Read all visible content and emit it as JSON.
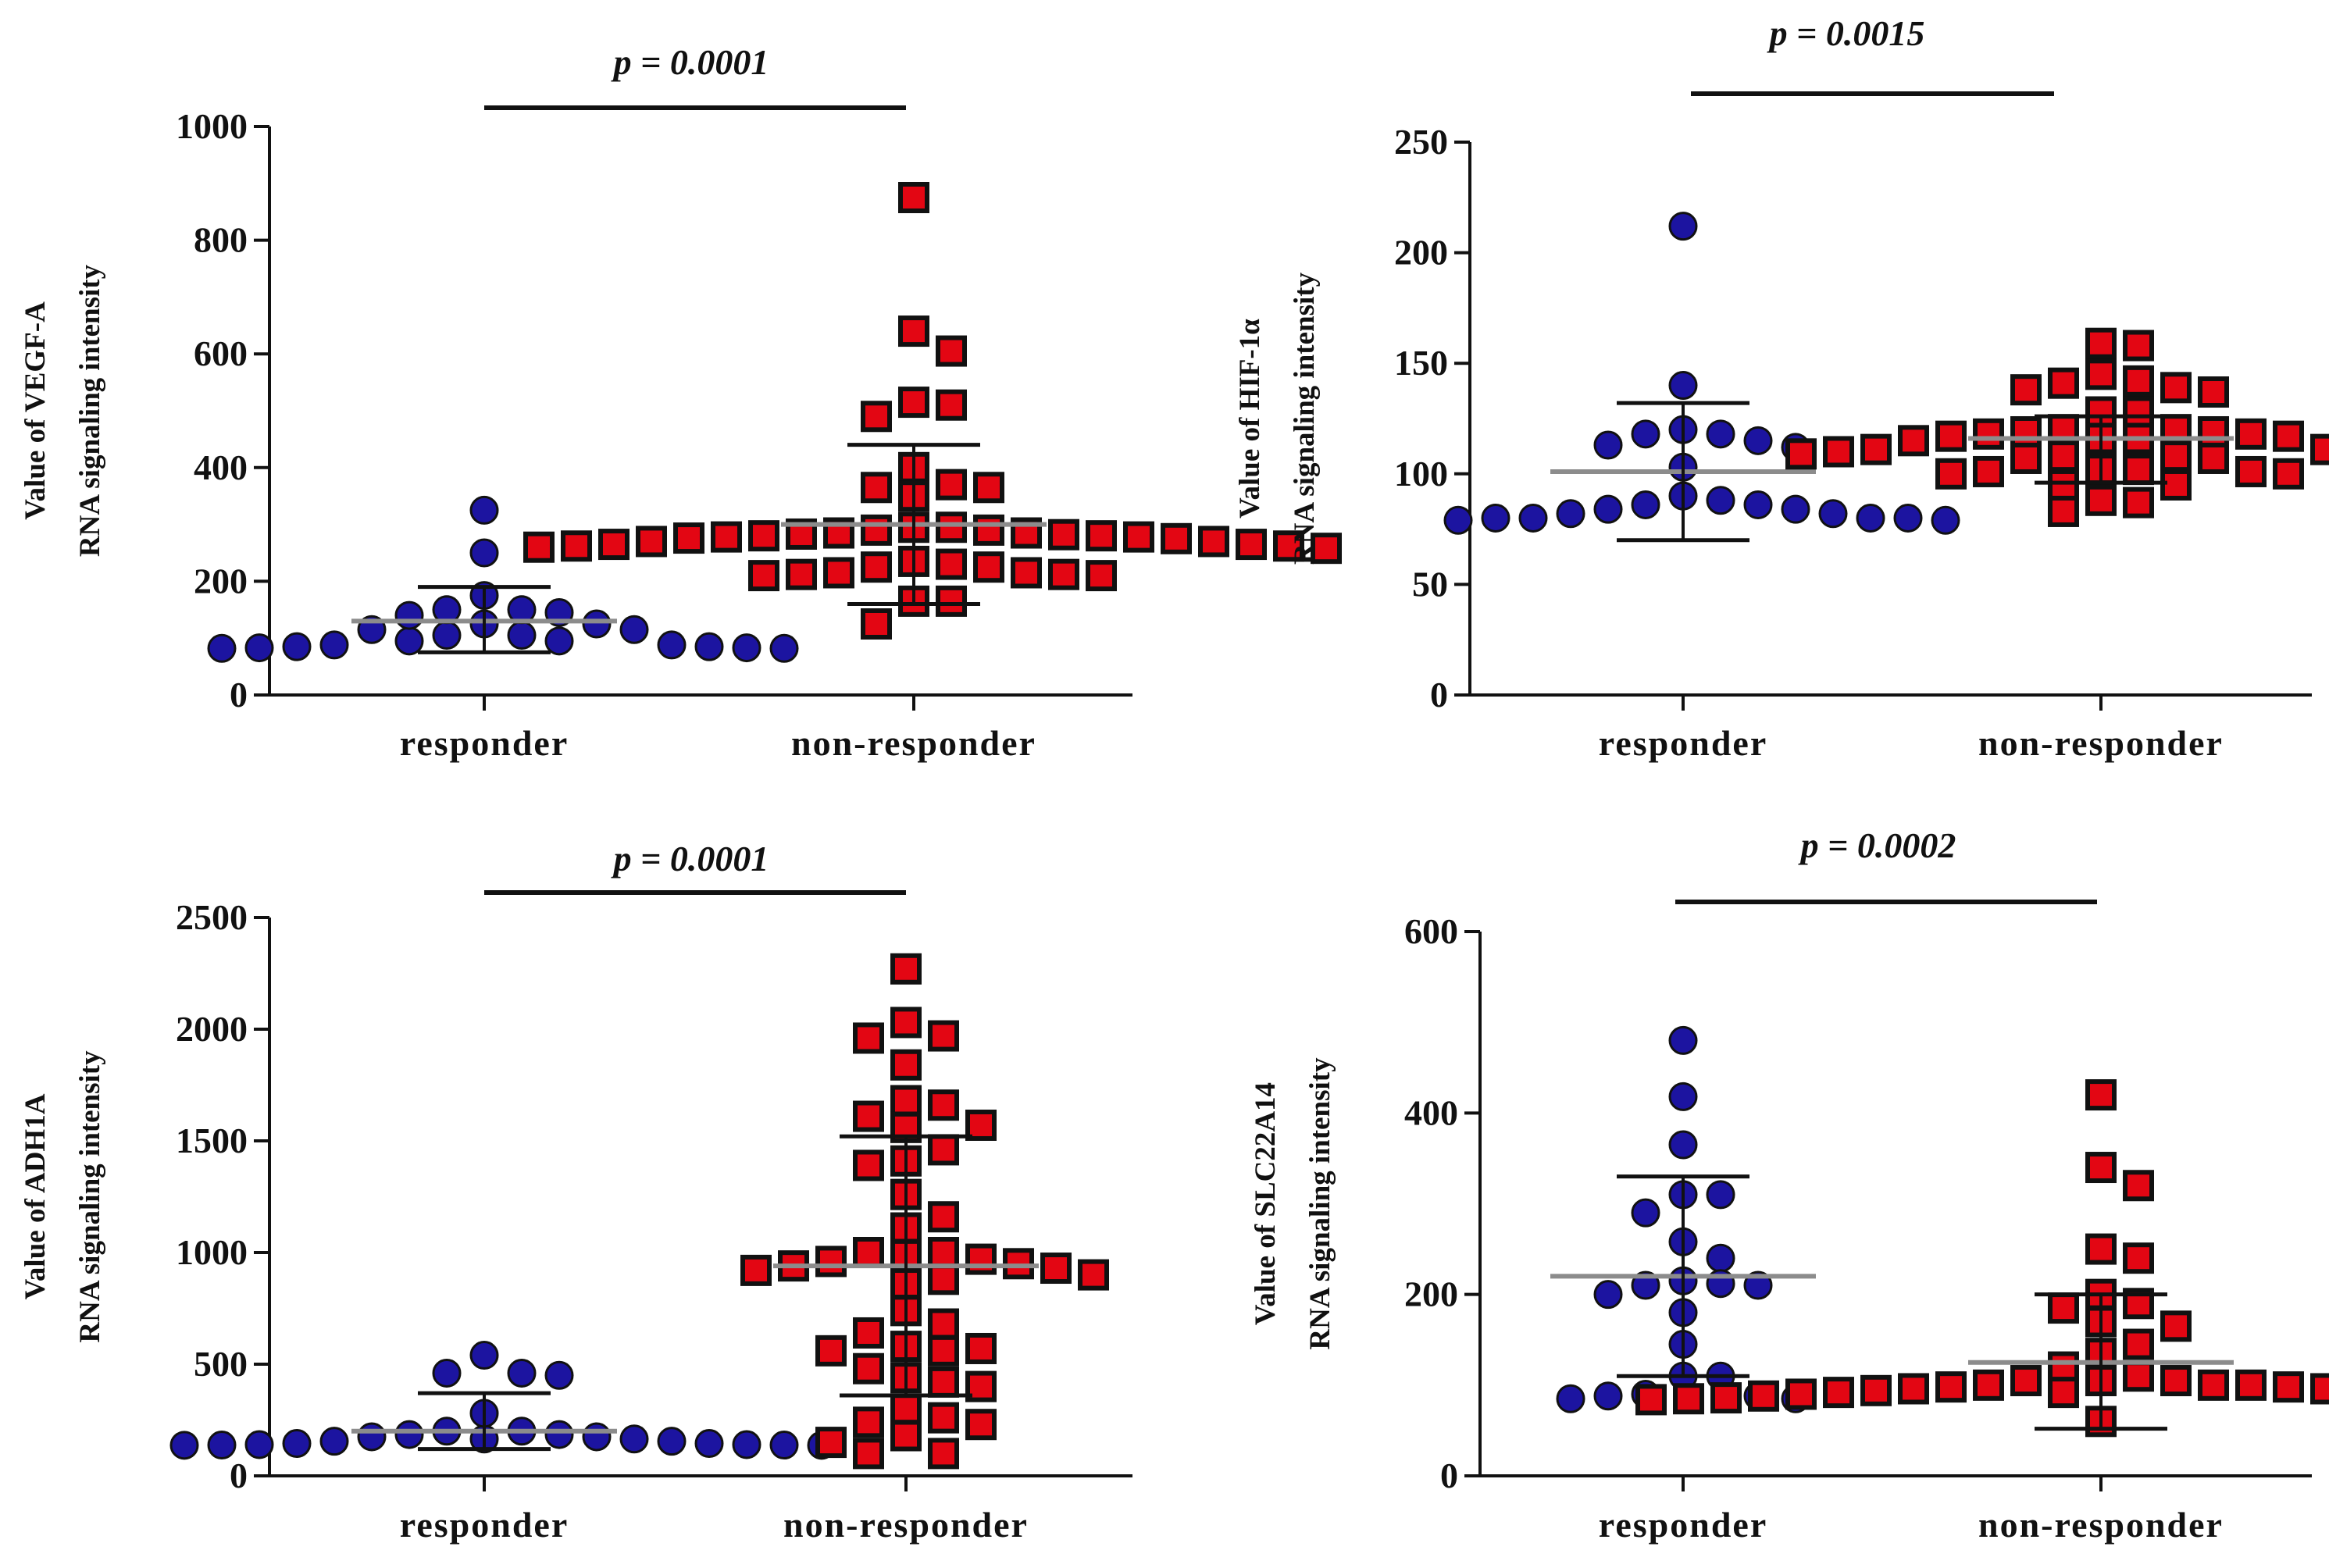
{
  "colors": {
    "responder_fill": "#1c14a0",
    "non_responder_fill": "#e30613",
    "marker_edge": "#111111",
    "mean_line": "#8c8c8c",
    "axis": "#111111"
  },
  "chart_data": [
    {
      "type": "scatter",
      "id": "vegfa",
      "ylabel_line1": "Value of VEGF-A",
      "ylabel_line2": "RNA signaling intensity",
      "ylim": [
        0,
        1000
      ],
      "yticks": [
        0,
        200,
        400,
        600,
        800,
        1000
      ],
      "categories": [
        "responder",
        "non-responder"
      ],
      "pvalue": "p = 0.0001",
      "series": [
        {
          "name": "responder",
          "marker": "circle",
          "mean": 130,
          "sd_low": 75,
          "sd_high": 190,
          "values": [
            125,
            115,
            105,
            95,
            88,
            85,
            83,
            82,
            82,
            83,
            85,
            88,
            95,
            105,
            115,
            125,
            175,
            145,
            150,
            140,
            150,
            250,
            325
          ]
        },
        {
          "name": "non-responder",
          "marker": "square",
          "mean": 300,
          "sd_low": 160,
          "sd_high": 440,
          "values": [
            875,
            605,
            640,
            510,
            490,
            515,
            370,
            365,
            400,
            350,
            365,
            295,
            290,
            285,
            282,
            280,
            278,
            276,
            275,
            278,
            280,
            283,
            285,
            290,
            295,
            270,
            265,
            262,
            260,
            258,
            262,
            265,
            270,
            235,
            225,
            215,
            212,
            210,
            210,
            212,
            215,
            225,
            230,
            165,
            165,
            125
          ]
        }
      ]
    },
    {
      "type": "scatter",
      "id": "hif1a",
      "ylabel_line1": "Value of HIF-1α",
      "ylabel_line2": "RNA signaling intensity",
      "ylim": [
        0,
        250
      ],
      "yticks": [
        0,
        50,
        100,
        150,
        200,
        250
      ],
      "categories": [
        "responder",
        "non-responder"
      ],
      "pvalue": "p = 0.0015",
      "series": [
        {
          "name": "responder",
          "marker": "circle",
          "mean": 101,
          "sd_low": 70,
          "sd_high": 132,
          "values": [
            88,
            86,
            84,
            82,
            80,
            80,
            79,
            79,
            80,
            80,
            82,
            84,
            86,
            90,
            115,
            112,
            118,
            120,
            113,
            118,
            103,
            140,
            212
          ]
        },
        {
          "name": "non-responder",
          "marker": "square",
          "mean": 116,
          "sd_low": 96,
          "sd_high": 126,
          "values": [
            158,
            159,
            145,
            141,
            138,
            137,
            139,
            142,
            128,
            128,
            120,
            119,
            118,
            117,
            116,
            115,
            116,
            117,
            118,
            119,
            120,
            111,
            110,
            109,
            108,
            107,
            107,
            108,
            109,
            110,
            111,
            102,
            101,
            100,
            100,
            101,
            102,
            95,
            95,
            88,
            87,
            83
          ]
        }
      ]
    },
    {
      "type": "scatter",
      "id": "adh1a",
      "ylabel_line1": "Value of ADH1A",
      "ylabel_line2": "RNA signaling intensity",
      "ylim": [
        0,
        2500
      ],
      "yticks": [
        0,
        500,
        1000,
        1500,
        2000,
        2500
      ],
      "categories": [
        "responder",
        "non-responder"
      ],
      "pvalue": "p = 0.0001",
      "series": [
        {
          "name": "responder",
          "marker": "circle",
          "mean": 200,
          "sd_low": 120,
          "sd_high": 370,
          "values": [
            200,
            185,
            175,
            165,
            155,
            145,
            140,
            138,
            137,
            137,
            138,
            140,
            145,
            155,
            165,
            175,
            185,
            200,
            540,
            460,
            450,
            460,
            280
          ]
        },
        {
          "name": "non-responder",
          "marker": "square",
          "mean": 940,
          "sd_low": 360,
          "sd_high": 1520,
          "values": [
            2270,
            2030,
            1970,
            1960,
            1840,
            1660,
            1610,
            1680,
            1570,
            1460,
            1560,
            1410,
            1390,
            1260,
            1160,
            1110,
            1000,
            1000,
            990,
            970,
            960,
            950,
            940,
            930,
            920,
            900,
            880,
            860,
            740,
            680,
            640,
            580,
            560,
            560,
            570,
            480,
            440,
            420,
            400,
            300,
            260,
            240,
            230,
            180,
            150,
            100,
            100
          ]
        }
      ]
    },
    {
      "type": "scatter",
      "id": "slc22a14",
      "ylabel_line1": "Value of SLC22A14",
      "ylabel_line2": "RNA signaling intensity",
      "ylim": [
        0,
        600
      ],
      "yticks": [
        0,
        200,
        400,
        600
      ],
      "categories": [
        "responder",
        "non-responder"
      ],
      "pvalue": "p = 0.0002",
      "series": [
        {
          "name": "responder",
          "marker": "circle",
          "mean": 220,
          "sd_low": 110,
          "sd_high": 330,
          "values": [
            480,
            418,
            365,
            310,
            310,
            290,
            240,
            258,
            215,
            212,
            210,
            210,
            200,
            180,
            145,
            110,
            110,
            90,
            85,
            85,
            88,
            88
          ]
        },
        {
          "name": "non-responder",
          "marker": "square",
          "mean": 125,
          "sd_low": 52,
          "sd_high": 200,
          "values": [
            420,
            340,
            320,
            250,
            240,
            200,
            190,
            185,
            170,
            165,
            145,
            135,
            120,
            110,
            105,
            105,
            100,
            100,
            98,
            96,
            94,
            92,
            90,
            88,
            86,
            85,
            84,
            84,
            85,
            86,
            88,
            90,
            92,
            94,
            96,
            98,
            100,
            105,
            60
          ]
        }
      ]
    }
  ]
}
